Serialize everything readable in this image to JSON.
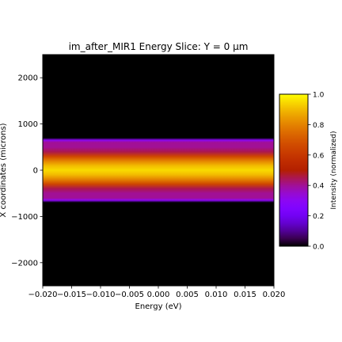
{
  "chart_data": {
    "type": "heatmap",
    "title": "im_after_MIR1 Energy Slice: Y = 0 µm",
    "xlabel": "Energy (eV)",
    "ylabel": "X coordinates (microns)",
    "xlim": [
      -0.02,
      0.02
    ],
    "ylim": [
      -2500,
      2500
    ],
    "x_ticks": [
      -0.02,
      -0.015,
      -0.01,
      -0.005,
      0.0,
      0.005,
      0.01,
      0.015,
      0.02
    ],
    "x_tick_labels": [
      "−0.020",
      "−0.015",
      "−0.010",
      "−0.005",
      "0.000",
      "0.005",
      "0.010",
      "0.015",
      "0.020"
    ],
    "y_ticks": [
      -2000,
      -1000,
      0,
      1000,
      2000
    ],
    "y_tick_labels": [
      "−2000",
      "−1000",
      "0",
      "1000",
      "2000"
    ],
    "colormap": "gnuplot",
    "colorbar": {
      "label": "Intensity (normalized)",
      "range": [
        0.0,
        1.0
      ],
      "ticks": [
        0.0,
        0.2,
        0.4,
        0.6,
        0.8,
        1.0
      ],
      "tick_labels": [
        "0.0",
        "0.2",
        "0.4",
        "0.6",
        "0.8",
        "1.0"
      ]
    },
    "intensity_profile": {
      "axis": "x_coordinate_microns",
      "uniform_along_energy": true,
      "positions": [
        -2500,
        -700,
        -650,
        -600,
        -500,
        -400,
        -300,
        -200,
        -100,
        0,
        100,
        200,
        300,
        400,
        500,
        600,
        650,
        700,
        2500
      ],
      "values": [
        0.0,
        0.0,
        0.3,
        0.4,
        0.4,
        0.45,
        0.65,
        0.8,
        0.9,
        0.95,
        0.9,
        0.8,
        0.65,
        0.45,
        0.4,
        0.4,
        0.3,
        0.0,
        0.0
      ]
    },
    "grid": false,
    "background_color": "#000000"
  }
}
